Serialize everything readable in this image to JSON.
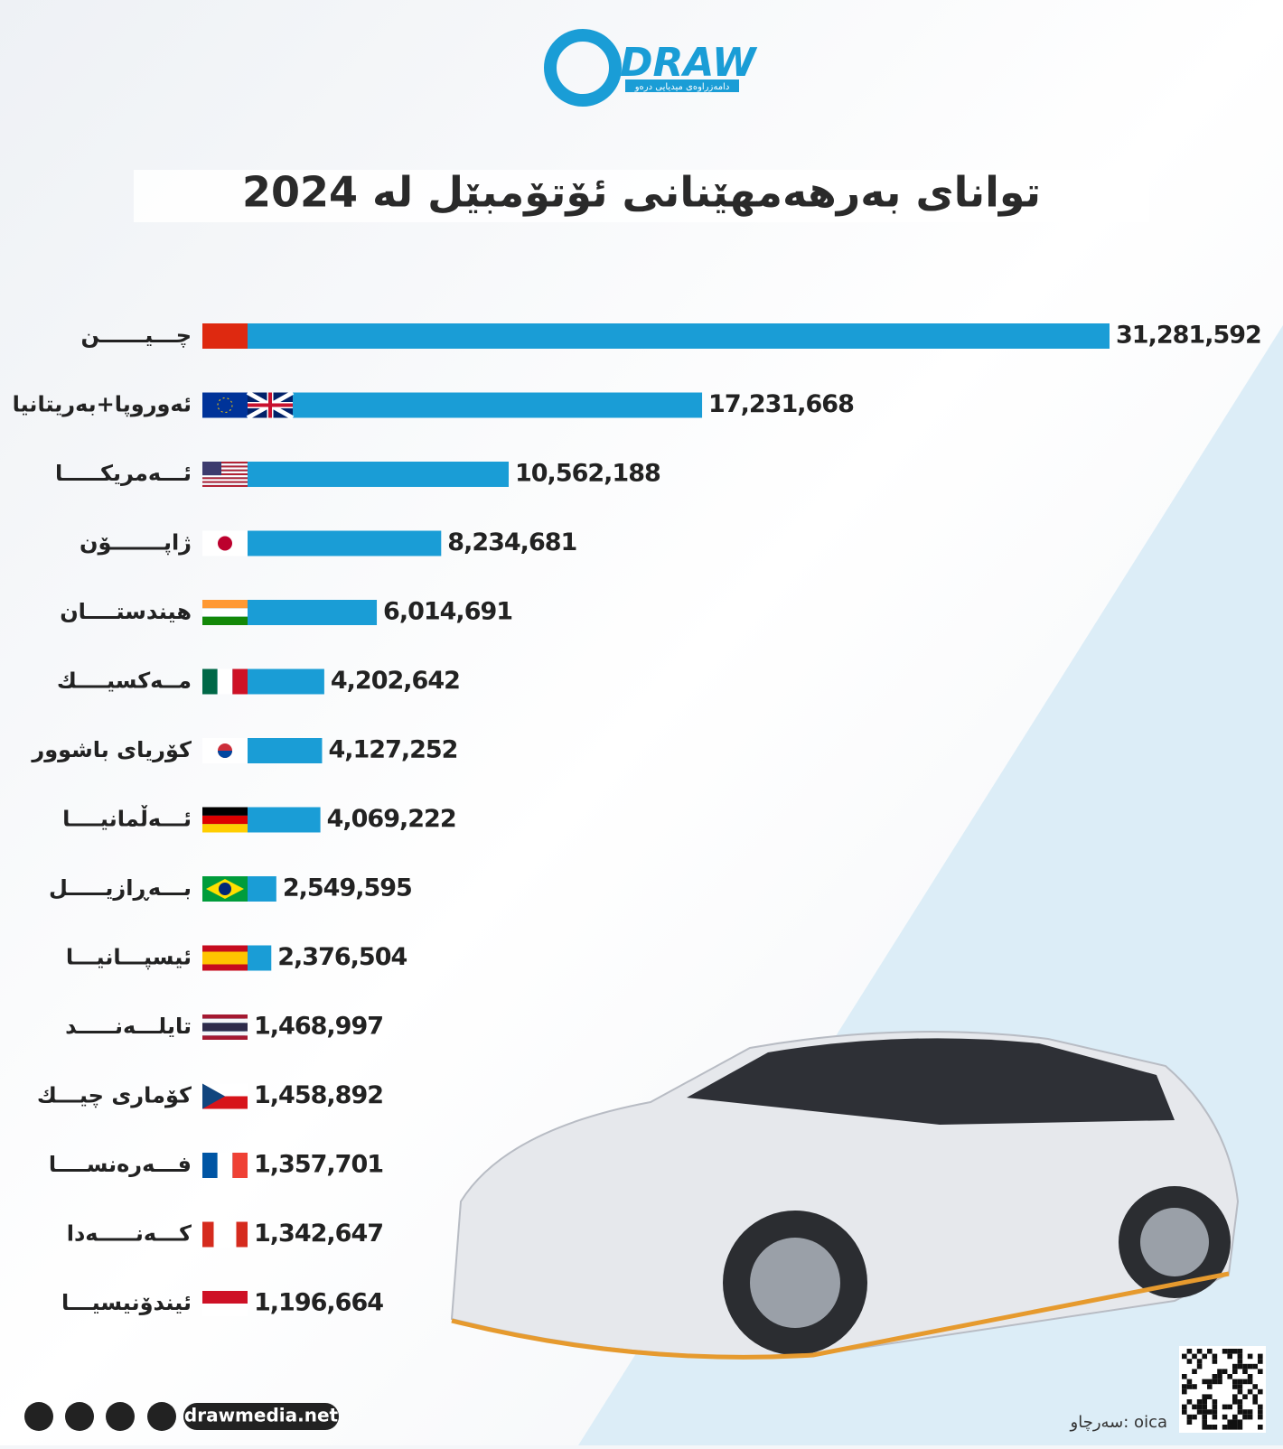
{
  "logo": {
    "name": "DRAW",
    "tagline": "دامەزراوەی میدیایی درەو"
  },
  "chart_data": {
    "type": "bar",
    "title": "تواناى بەرهەمهێنانى ئۆتۆمبێل لە 2024",
    "categories": [
      "چـــيــــــن",
      "ئەوروپا+بەریتانیا",
      "ئـــەمریکـــــا",
      "ژاپـــــــۆن",
      "هيندستــــان",
      "مــەکسيــــك",
      "کۆریای باشوور",
      "ئـــەڵمانيــــا",
      "بـــەڕازيـــــل",
      "ئيسپـــانيـــا",
      "تايلـــەنـــــد",
      "کۆماری چيـــك",
      "فـــەرەنســــا",
      "کـــەنـــــەدا",
      "ئيندۆنيسيـــا"
    ],
    "values": [
      31281592,
      17231668,
      10562188,
      8234681,
      6014691,
      4202642,
      4127252,
      4069222,
      2549595,
      2376504,
      1468997,
      1458892,
      1357701,
      1342647,
      1196664
    ],
    "value_labels": [
      "31,281,592",
      "17,231,668",
      "10,562,188",
      "8,234,681",
      "6,014,691",
      "4,202,642",
      "4,127,252",
      "4,069,222",
      "2,549,595",
      "2,376,504",
      "1,468,997",
      "1,458,892",
      "1,357,701",
      "1,342,647",
      "1,196,664"
    ],
    "color": "#1a9dd6"
  },
  "footer": {
    "website": "drawmedia.net",
    "source": "سەرچاو: oica"
  }
}
